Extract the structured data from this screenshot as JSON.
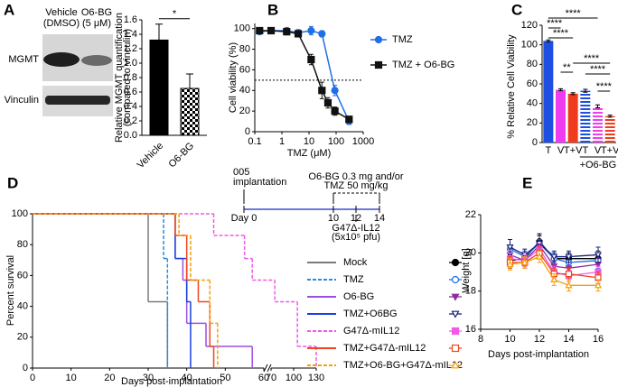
{
  "chart_data": [
    {
      "type": "bar",
      "panel": "A",
      "blot_labels": {
        "lanes": [
          [
            "Vehicle",
            "(DMSO)"
          ],
          [
            "O6-BG",
            "(5 μM)"
          ]
        ],
        "rows": [
          "MGMT",
          "Vinculin"
        ]
      },
      "ylabel": [
        "Relative MGMT quantification",
        "(compared to vinculin)"
      ],
      "categories": [
        "Vehicle",
        "O6-BG"
      ],
      "values": [
        1.32,
        0.65
      ],
      "errors": [
        0.22,
        0.2
      ],
      "colors": [
        "#000000",
        "#000000"
      ],
      "hatched": [
        false,
        true
      ],
      "ylim": [
        0,
        1.6
      ],
      "yticks": [
        {
          "value": 0,
          "label": "0.0"
        },
        0.2,
        0.4,
        0.6,
        0.8,
        {
          "value": 1,
          "label": "1.0"
        },
        1.2,
        1.4,
        1.6
      ],
      "annotations": [
        "*"
      ]
    },
    {
      "type": "scatter",
      "panel": "B",
      "xscale": "log",
      "xlabel": "TMZ (μM)",
      "ylabel": "Cell viability (%)",
      "xlim": [
        0.1,
        1000
      ],
      "xticks": [
        0.1,
        1,
        10,
        100,
        1000
      ],
      "ylim": [
        0,
        105
      ],
      "yticks": [
        0,
        20,
        40,
        60,
        80,
        100
      ],
      "hline": 50,
      "legend": "upper right",
      "series": [
        {
          "name": "TMZ",
          "color": "#1f6fe6",
          "marker": "circle",
          "x": [
            0.15,
            0.4,
            1.5,
            4,
            12,
            30,
            90,
            300
          ],
          "values": [
            97,
            98,
            98,
            96,
            98,
            95,
            40,
            10
          ],
          "errors": [
            2,
            2,
            3,
            3,
            4,
            3,
            5,
            3
          ]
        },
        {
          "name": "TMZ + O6-BG",
          "color": "#111111",
          "marker": "square",
          "x": [
            0.15,
            0.4,
            1.5,
            4,
            12,
            30,
            50,
            90,
            300
          ],
          "values": [
            98,
            98,
            97,
            95,
            70,
            40,
            28,
            20,
            12
          ],
          "errors": [
            2,
            2,
            3,
            3,
            5,
            8,
            5,
            4,
            3
          ]
        }
      ]
    },
    {
      "type": "bar",
      "panel": "C",
      "ylabel": "% Relative Cell Viability",
      "categories": [
        "T",
        "V",
        "T+V",
        "T",
        "V",
        "T+V"
      ],
      "group_label": "+O6-BG",
      "values": [
        104,
        54,
        50,
        53,
        37,
        27
      ],
      "errors": [
        1,
        1,
        1,
        1.5,
        1.5,
        1
      ],
      "colors": [
        "#1f4fe0",
        "#f03cf0",
        "#f03c1e",
        "#1f4fe0",
        "#f03cf0",
        "#f03c1e"
      ],
      "hatched": [
        false,
        false,
        false,
        true,
        true,
        true
      ],
      "ylim": [
        0,
        120
      ],
      "yticks": [
        0,
        20,
        40,
        60,
        80,
        100,
        120
      ],
      "annotations": [
        "****",
        "****",
        "****",
        "**",
        "****",
        "****",
        "****"
      ]
    },
    {
      "type": "step",
      "panel": "D",
      "ylabel": "Percent survival",
      "xlabel": "Days  post-implantation",
      "xlim": [
        0,
        130
      ],
      "xbreak": [
        60,
        70
      ],
      "xticks": [
        0,
        10,
        20,
        30,
        40,
        50,
        60,
        70,
        100,
        130
      ],
      "ylim": [
        0,
        100
      ],
      "yticks": [
        0,
        20,
        40,
        60,
        80,
        100
      ],
      "series": [
        {
          "name": "Mock",
          "color": "#7a7a7a",
          "dashed": false,
          "x": [
            0,
            30,
            35
          ],
          "values": [
            100,
            43,
            0
          ]
        },
        {
          "name": "TMZ",
          "color": "#2a8ae0",
          "dashed": true,
          "x": [
            0,
            34,
            35
          ],
          "values": [
            100,
            71,
            0
          ]
        },
        {
          "name": "O6-BG",
          "color": "#9b4fe0",
          "dashed": false,
          "x": [
            0,
            37,
            39,
            40,
            45,
            57
          ],
          "values": [
            100,
            71,
            57,
            29,
            14,
            0
          ]
        },
        {
          "name": "TMZ+O6BG",
          "color": "#1a3fe0",
          "dashed": false,
          "x": [
            0,
            37,
            40,
            41
          ],
          "values": [
            100,
            71,
            43,
            0
          ]
        },
        {
          "name": "G47Δ-mIL12",
          "color": "#f05ae6",
          "dashed": true,
          "x": [
            0,
            47,
            55,
            57,
            75,
            105,
            130
          ],
          "values": [
            100,
            86,
            71,
            57,
            43,
            14,
            0
          ]
        },
        {
          "name": "TMZ+G47Δ-mIL12",
          "color": "#f0461e",
          "dashed": false,
          "x": [
            0,
            37,
            40,
            43,
            46,
            47
          ],
          "values": [
            100,
            86,
            57,
            43,
            14,
            0
          ]
        },
        {
          "name": "TMZ+O6-BG+G47Δ-mIL12",
          "color": "#f5a00a",
          "dashed": true,
          "x": [
            0,
            38,
            41,
            46,
            48
          ],
          "values": [
            100,
            86,
            57,
            29,
            0
          ]
        }
      ],
      "inset": {
        "implant": [
          "005",
          "implantation"
        ],
        "days": [
          "Day 0",
          "10",
          "12",
          "14"
        ],
        "treatment": [
          "O6-BG 0.3 mg and/or",
          "TMZ 50 mg/kg"
        ],
        "virus": [
          "G47Δ-IL12",
          "(5x10⁵ pfu)"
        ]
      }
    },
    {
      "type": "line",
      "panel": "E",
      "ylabel": "Weight [g]",
      "xlabel": "Days post-implantation",
      "xlim": [
        8,
        16
      ],
      "xticks": [
        8,
        10,
        12,
        14,
        16
      ],
      "ylim": [
        16,
        22
      ],
      "yticks": [
        16,
        18,
        20,
        22
      ],
      "x": [
        10,
        11,
        12,
        13,
        14,
        16
      ],
      "series": [
        {
          "color": "#000000",
          "marker": "circle",
          "filled": true,
          "values": [
            19.6,
            19.7,
            20.6,
            19.7,
            19.7,
            19.7
          ],
          "errors": [
            0.4,
            0.3,
            0.4,
            0.3,
            0.3,
            0.4
          ]
        },
        {
          "color": "#1f6fe6",
          "marker": "circle",
          "filled": false,
          "values": [
            20.2,
            19.8,
            20.5,
            19.7,
            19.5,
            19.6
          ],
          "errors": [
            0.5,
            0.3,
            0.4,
            0.3,
            0.3,
            0.4
          ]
        },
        {
          "color": "#8a2f9e",
          "marker": "tri-down",
          "filled": true,
          "values": [
            19.9,
            19.6,
            20.4,
            19.3,
            19.2,
            19.4
          ],
          "errors": [
            0.3,
            0.3,
            0.3,
            0.3,
            0.3,
            0.3
          ]
        },
        {
          "color": "#16207a",
          "marker": "tri-down",
          "filled": false,
          "values": [
            20.3,
            19.9,
            20.5,
            19.8,
            19.8,
            19.9
          ],
          "errors": [
            0.4,
            0.3,
            0.4,
            0.3,
            0.3,
            0.4
          ]
        },
        {
          "color": "#f05ae6",
          "marker": "square",
          "filled": true,
          "values": [
            19.7,
            19.6,
            20.2,
            19.0,
            18.8,
            19.0
          ],
          "errors": [
            0.3,
            0.3,
            0.3,
            0.3,
            0.3,
            0.3
          ]
        },
        {
          "color": "#f0461e",
          "marker": "square",
          "filled": false,
          "values": [
            19.5,
            19.5,
            20.0,
            18.9,
            18.9,
            18.7
          ],
          "errors": [
            0.3,
            0.3,
            0.3,
            0.3,
            0.3,
            0.3
          ]
        },
        {
          "color": "#f5a00a",
          "marker": "triangle",
          "filled": false,
          "values": [
            19.4,
            19.5,
            19.8,
            18.6,
            18.3,
            18.3
          ],
          "errors": [
            0.3,
            0.3,
            0.3,
            0.3,
            0.3,
            0.3
          ]
        }
      ]
    }
  ]
}
